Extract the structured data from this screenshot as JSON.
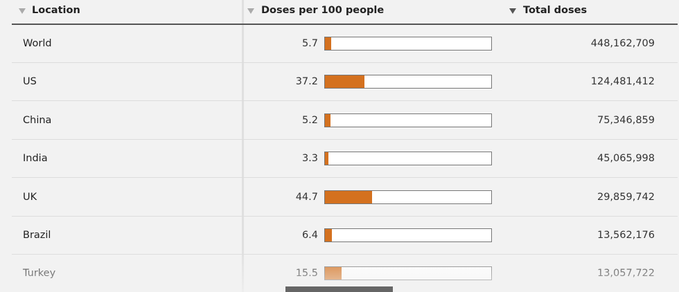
{
  "header": {
    "columns": [
      "Location",
      "Doses per 100 people",
      "Total doses"
    ]
  },
  "table": {
    "rows": [
      {
        "location": "World",
        "doses_per_100": 5.7,
        "total_doses": "448,162,709"
      },
      {
        "location": "US",
        "doses_per_100": 37.2,
        "total_doses": "124,481,412"
      },
      {
        "location": "China",
        "doses_per_100": 5.2,
        "total_doses": "75,346,859"
      },
      {
        "location": "India",
        "doses_per_100": 3.3,
        "total_doses": "45,065,998"
      },
      {
        "location": "UK",
        "doses_per_100": 44.7,
        "total_doses": "29,859,742"
      },
      {
        "location": "Brazil",
        "doses_per_100": 6.4,
        "total_doses": "13,562,176"
      },
      {
        "location": "Turkey",
        "doses_per_100": 15.5,
        "total_doses": "13,057,722"
      }
    ]
  }
}
